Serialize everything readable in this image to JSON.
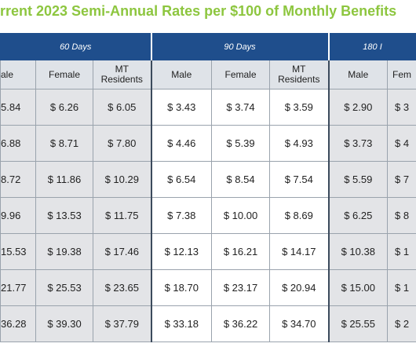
{
  "header": {
    "title": "rrent 2023 Semi-Annual Rates per $100 of Monthly Benefits"
  },
  "table": {
    "groups": [
      "60 Days",
      "90 Days",
      "180 I"
    ],
    "columns": [
      "ale",
      "Female",
      "MT Residents",
      "Male",
      "Female",
      "MT Residents",
      "Male",
      "Fem"
    ],
    "rows": [
      [
        "5.84",
        "$ 6.26",
        "$ 6.05",
        "$ 3.43",
        "$ 3.74",
        "$ 3.59",
        "$ 2.90",
        "$ 3"
      ],
      [
        "6.88",
        "$ 8.71",
        "$ 7.80",
        "$ 4.46",
        "$ 5.39",
        "$ 4.93",
        "$ 3.73",
        "$ 4"
      ],
      [
        "8.72",
        "$ 11.86",
        "$ 10.29",
        "$ 6.54",
        "$ 8.54",
        "$ 7.54",
        "$ 5.59",
        "$ 7"
      ],
      [
        "9.96",
        "$ 13.53",
        "$ 11.75",
        "$ 7.38",
        "$ 10.00",
        "$ 8.69",
        "$ 6.25",
        "$ 8"
      ],
      [
        "15.53",
        "$ 19.38",
        "$ 17.46",
        "$ 12.13",
        "$ 16.21",
        "$ 14.17",
        "$ 10.38",
        "$ 1"
      ],
      [
        "21.77",
        "$ 25.53",
        "$ 23.65",
        "$ 18.70",
        "$ 23.17",
        "$ 20.94",
        "$ 15.00",
        "$ 1"
      ],
      [
        "36.28",
        "$ 39.30",
        "$ 37.79",
        "$ 33.18",
        "$ 36.22",
        "$ 34.70",
        "$ 25.55",
        "$ 2"
      ]
    ]
  }
}
